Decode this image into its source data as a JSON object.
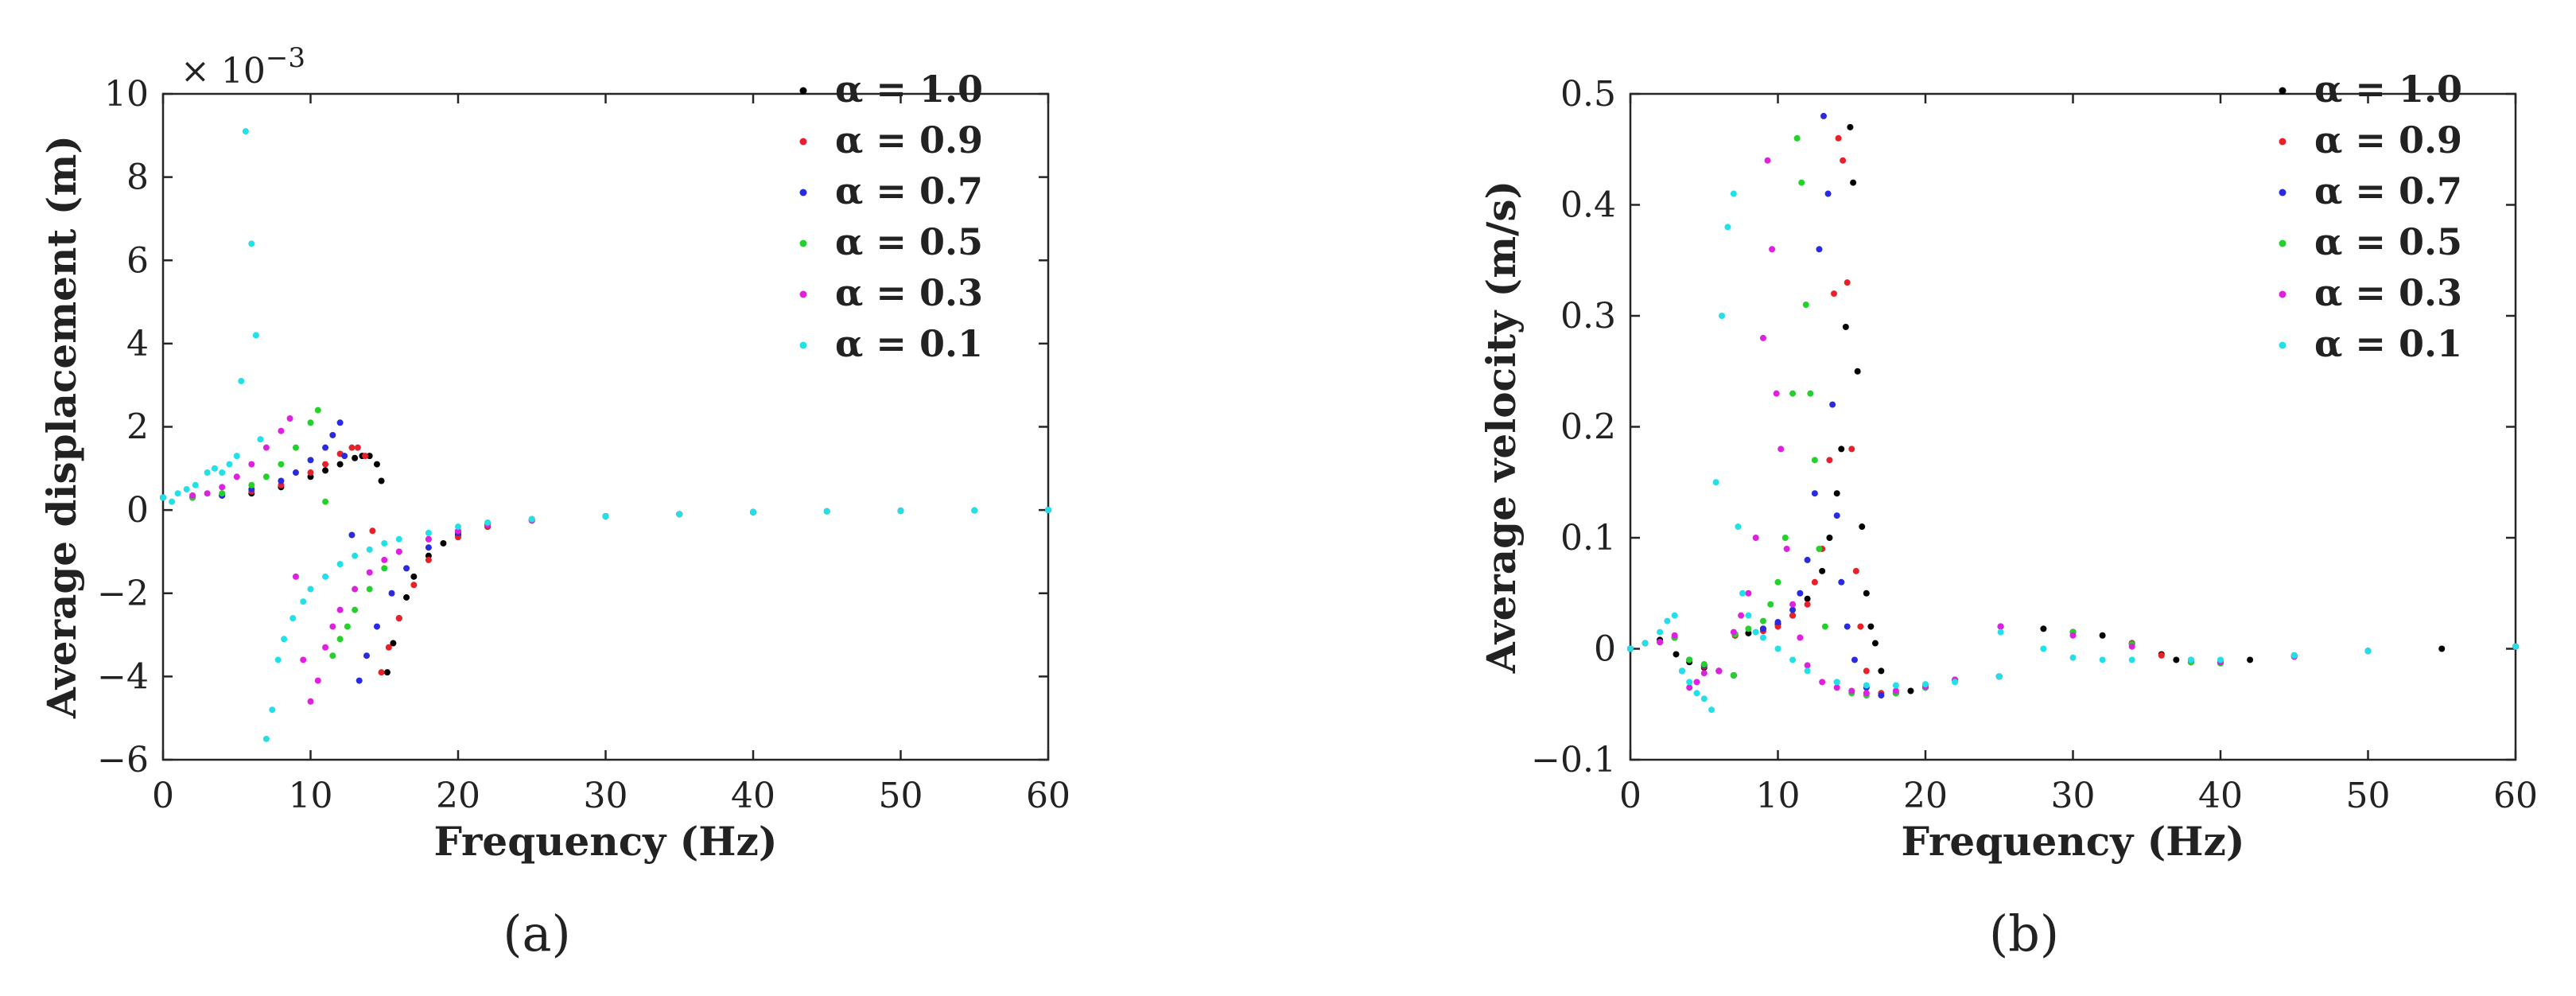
{
  "figure": {
    "panel_a_label": "(a)",
    "panel_b_label": "(b)"
  },
  "chart_data": [
    {
      "type": "scatter",
      "title": "",
      "xlabel": "Frequency (Hz)",
      "ylabel": "Average displacement (m)",
      "y_multiplier_label": "× 10",
      "y_multiplier_exponent": "−3",
      "xlim": [
        0,
        60
      ],
      "ylim": [
        -6,
        10
      ],
      "xticks": [
        "0",
        "10",
        "20",
        "30",
        "40",
        "50",
        "60"
      ],
      "yticks": [
        "−6",
        "−4",
        "−2",
        "0",
        "2",
        "4",
        "6",
        "8",
        "10"
      ],
      "grid": false,
      "legend_position": "top-right",
      "series": [
        {
          "name": "α = 1.0",
          "color": "#000000",
          "x": [
            0,
            2,
            4,
            6,
            8,
            10,
            11,
            12,
            13,
            13.5,
            14,
            14.5,
            14.8,
            15.2,
            15.6,
            16,
            16.5,
            17,
            18,
            19,
            20,
            22,
            25,
            30,
            35,
            40,
            45,
            50,
            55,
            60
          ],
          "y": [
            0.3,
            0.3,
            0.35,
            0.4,
            0.55,
            0.8,
            0.95,
            1.1,
            1.25,
            1.3,
            1.3,
            1.1,
            0.7,
            -3.9,
            -3.2,
            -2.6,
            -2.1,
            -1.6,
            -1.1,
            -0.8,
            -0.6,
            -0.4,
            -0.25,
            -0.15,
            -0.1,
            -0.05,
            -0.03,
            -0.02,
            -0.01,
            0
          ]
        },
        {
          "name": "α = 0.9",
          "color": "#e8202a",
          "x": [
            0,
            2,
            4,
            6,
            8,
            10,
            11,
            12,
            12.8,
            13.2,
            13.7,
            14.2,
            14.8,
            15.3,
            16,
            17,
            18,
            20,
            22,
            25,
            30,
            35,
            40,
            50,
            60
          ],
          "y": [
            0.3,
            0.3,
            0.35,
            0.45,
            0.6,
            0.9,
            1.1,
            1.35,
            1.5,
            1.5,
            1.3,
            -0.5,
            -3.9,
            -3.3,
            -2.6,
            -1.8,
            -1.2,
            -0.65,
            -0.4,
            -0.25,
            -0.15,
            -0.1,
            -0.05,
            -0.02,
            0
          ]
        },
        {
          "name": "α = 0.7",
          "color": "#2a2ae0",
          "x": [
            0,
            2,
            4,
            6,
            8,
            9,
            10,
            11,
            11.5,
            12,
            12.3,
            12.8,
            13.3,
            13.8,
            14.5,
            15.5,
            16.5,
            18,
            20,
            22,
            25,
            30,
            35,
            40,
            50,
            60
          ],
          "y": [
            0.3,
            0.3,
            0.35,
            0.5,
            0.7,
            0.9,
            1.2,
            1.5,
            1.8,
            2.1,
            1.3,
            -0.6,
            -4.1,
            -3.5,
            -2.8,
            -2.0,
            -1.4,
            -0.9,
            -0.55,
            -0.35,
            -0.22,
            -0.15,
            -0.1,
            -0.05,
            -0.02,
            0
          ]
        },
        {
          "name": "α = 0.5",
          "color": "#22d22a",
          "x": [
            0,
            2,
            4,
            6,
            7,
            8,
            9,
            10,
            10.5,
            11,
            11.5,
            12,
            12.5,
            13,
            14,
            15,
            16,
            18,
            20,
            22,
            25,
            30,
            35,
            40,
            50,
            60
          ],
          "y": [
            0.3,
            0.3,
            0.4,
            0.6,
            0.8,
            1.1,
            1.5,
            2.1,
            2.4,
            0.2,
            -3.5,
            -3.1,
            -2.8,
            -2.4,
            -1.9,
            -1.4,
            -1.0,
            -0.7,
            -0.5,
            -0.35,
            -0.25,
            -0.15,
            -0.1,
            -0.05,
            -0.02,
            0
          ]
        },
        {
          "name": "α = 0.3",
          "color": "#e020e0",
          "x": [
            0,
            2,
            3,
            4,
            5,
            6,
            7,
            8,
            8.6,
            9,
            9.5,
            10,
            10.5,
            11,
            11.5,
            12,
            13,
            14,
            15,
            16,
            18,
            20,
            22,
            25,
            30,
            35,
            40,
            50,
            60
          ],
          "y": [
            0.3,
            0.35,
            0.4,
            0.55,
            0.8,
            1.1,
            1.5,
            1.9,
            2.2,
            -1.6,
            -3.6,
            -4.6,
            -4.1,
            -3.3,
            -2.8,
            -2.4,
            -1.9,
            -1.5,
            -1.2,
            -1.0,
            -0.7,
            -0.5,
            -0.35,
            -0.25,
            -0.15,
            -0.1,
            -0.05,
            -0.02,
            0
          ]
        },
        {
          "name": "α = 0.1",
          "color": "#22e0e8",
          "x": [
            0,
            0.6,
            1,
            1.6,
            2.2,
            3,
            3.5,
            4,
            4.5,
            5,
            5.3,
            5.6,
            6,
            6.3,
            6.6,
            7,
            7.4,
            7.8,
            8.2,
            8.8,
            9.5,
            10,
            11,
            12,
            13,
            14,
            15,
            16,
            18,
            20,
            22,
            25,
            30,
            35,
            40,
            45,
            50,
            55,
            60
          ],
          "y": [
            0.3,
            0.2,
            0.4,
            0.5,
            0.6,
            0.9,
            1.0,
            0.9,
            1.1,
            1.3,
            3.1,
            9.1,
            6.4,
            4.2,
            1.7,
            -5.5,
            -4.8,
            -3.6,
            -3.1,
            -2.6,
            -2.2,
            -1.9,
            -1.6,
            -1.3,
            -1.1,
            -0.95,
            -0.8,
            -0.7,
            -0.55,
            -0.4,
            -0.3,
            -0.22,
            -0.15,
            -0.1,
            -0.05,
            -0.03,
            -0.02,
            -0.01,
            0
          ]
        }
      ]
    },
    {
      "type": "scatter",
      "title": "",
      "xlabel": "Frequency (Hz)",
      "ylabel": "Average velocity (m/s)",
      "xlim": [
        0,
        60
      ],
      "ylim": [
        -0.1,
        0.5
      ],
      "xticks": [
        "0",
        "10",
        "20",
        "30",
        "40",
        "50",
        "60"
      ],
      "yticks": [
        "−0.1",
        "0",
        "0.1",
        "0.2",
        "0.3",
        "0.4",
        "0.5"
      ],
      "grid": false,
      "legend_position": "top-right",
      "series": [
        {
          "name": "α = 1.0",
          "color": "#000000",
          "x": [
            0,
            1,
            2,
            3,
            3.1,
            4,
            5,
            6,
            7,
            7.1,
            8,
            9,
            10,
            11,
            12,
            13,
            13.5,
            14,
            14.3,
            14.6,
            14.9,
            15.1,
            15.4,
            15.7,
            16,
            16.3,
            16.6,
            17,
            18,
            19,
            20,
            22,
            25,
            25.1,
            28,
            30,
            32,
            34,
            36,
            37,
            38,
            40,
            42,
            45,
            50,
            55,
            60
          ],
          "y": [
            0,
            0.005,
            0.008,
            0.01,
            -0.005,
            -0.012,
            -0.017,
            -0.02,
            -0.024,
            0.012,
            0.014,
            0.018,
            0.022,
            0.03,
            0.045,
            0.07,
            0.1,
            0.14,
            0.18,
            0.29,
            0.47,
            0.42,
            0.25,
            0.11,
            0.05,
            0.02,
            0.005,
            -0.02,
            -0.04,
            -0.038,
            -0.034,
            -0.028,
            -0.025,
            0.02,
            0.018,
            0.015,
            0.012,
            0.005,
            -0.005,
            -0.01,
            -0.012,
            -0.012,
            -0.01,
            -0.006,
            -0.002,
            0,
            0.002
          ]
        },
        {
          "name": "α = 0.9",
          "color": "#e8202a",
          "x": [
            0,
            2,
            3,
            4,
            5,
            6,
            7,
            7.1,
            9,
            10,
            11,
            12,
            12.5,
            13,
            13.5,
            13.8,
            14.1,
            14.4,
            14.7,
            15,
            15.3,
            15.6,
            16,
            17,
            18,
            20,
            22,
            25,
            25.1,
            30,
            34,
            36,
            38,
            40,
            45,
            50,
            60
          ],
          "y": [
            0,
            0.006,
            0.01,
            -0.01,
            -0.016,
            -0.02,
            -0.024,
            0.012,
            0.016,
            0.02,
            0.03,
            0.04,
            0.06,
            0.09,
            0.17,
            0.32,
            0.46,
            0.44,
            0.33,
            0.18,
            0.07,
            0.02,
            -0.02,
            -0.04,
            -0.04,
            -0.035,
            -0.028,
            -0.025,
            0.02,
            0.015,
            0.005,
            -0.006,
            -0.012,
            -0.013,
            -0.007,
            -0.002,
            0.002
          ]
        },
        {
          "name": "α = 0.7",
          "color": "#2a2ae0",
          "x": [
            0,
            2,
            3,
            4,
            5,
            6,
            7,
            7.1,
            9,
            10,
            11,
            11.5,
            12,
            12.5,
            12.8,
            13.1,
            13.4,
            13.7,
            14,
            14.3,
            14.7,
            15.2,
            16,
            17,
            18,
            20,
            22,
            25,
            25.1,
            30,
            34,
            38,
            40,
            45,
            50,
            60
          ],
          "y": [
            0,
            0.006,
            0.01,
            -0.01,
            -0.015,
            -0.02,
            -0.024,
            0.013,
            0.018,
            0.024,
            0.035,
            0.05,
            0.08,
            0.14,
            0.36,
            0.48,
            0.41,
            0.22,
            0.12,
            0.06,
            0.02,
            -0.01,
            -0.035,
            -0.042,
            -0.04,
            -0.035,
            -0.028,
            -0.025,
            0.02,
            0.015,
            0.004,
            -0.012,
            -0.013,
            -0.007,
            -0.002,
            0.002
          ]
        },
        {
          "name": "α = 0.5",
          "color": "#22d22a",
          "x": [
            0,
            2,
            3,
            4,
            5,
            6,
            7,
            7.1,
            8,
            9,
            9.5,
            10,
            10.5,
            11,
            11.3,
            11.6,
            11.9,
            12.2,
            12.5,
            12.8,
            13.2,
            14,
            15,
            16,
            18,
            20,
            22,
            25,
            25.1,
            30,
            34,
            38,
            40,
            45,
            50,
            60
          ],
          "y": [
            0,
            0.006,
            0.01,
            -0.01,
            -0.014,
            -0.02,
            -0.024,
            0.013,
            0.018,
            0.025,
            0.04,
            0.06,
            0.1,
            0.23,
            0.46,
            0.42,
            0.31,
            0.23,
            0.17,
            0.09,
            0.02,
            -0.03,
            -0.04,
            -0.042,
            -0.04,
            -0.035,
            -0.028,
            -0.025,
            0.02,
            0.015,
            0.004,
            -0.012,
            -0.013,
            -0.007,
            -0.002,
            0.002
          ]
        },
        {
          "name": "α = 0.3",
          "color": "#e020e0",
          "x": [
            0,
            2,
            3,
            3.5,
            4,
            4.5,
            5,
            6,
            7,
            7.5,
            8,
            8.5,
            9,
            9.3,
            9.6,
            9.9,
            10.2,
            10.6,
            11,
            11.5,
            12,
            13,
            14,
            15,
            16,
            18,
            20,
            22,
            25,
            25.1,
            30,
            34,
            38,
            40,
            45,
            50,
            60
          ],
          "y": [
            0,
            0.006,
            0.012,
            -0.02,
            -0.035,
            -0.03,
            -0.022,
            -0.02,
            0.015,
            0.03,
            0.05,
            0.1,
            0.28,
            0.44,
            0.36,
            0.23,
            0.18,
            0.09,
            0.04,
            0.01,
            -0.015,
            -0.03,
            -0.035,
            -0.038,
            -0.04,
            -0.038,
            -0.034,
            -0.028,
            -0.025,
            0.02,
            0.012,
            0.002,
            -0.01,
            -0.012,
            -0.007,
            -0.002,
            0.002
          ]
        },
        {
          "name": "α = 0.1",
          "color": "#22e0e8",
          "x": [
            0,
            1,
            2,
            2.5,
            3,
            3.5,
            4,
            4.5,
            5,
            5.5,
            5.8,
            6.2,
            6.6,
            7,
            7.3,
            7.6,
            8,
            8.5,
            9,
            10,
            11,
            12,
            14,
            16,
            18,
            20,
            22,
            25,
            25.1,
            28,
            30,
            32,
            34,
            38,
            40,
            45,
            50,
            60
          ],
          "y": [
            0,
            0.005,
            0.015,
            0.025,
            0.03,
            -0.02,
            -0.03,
            -0.04,
            -0.045,
            -0.055,
            0.15,
            0.3,
            0.38,
            0.41,
            0.11,
            0.05,
            0.03,
            0.015,
            0.01,
            0.0,
            -0.01,
            -0.02,
            -0.03,
            -0.033,
            -0.033,
            -0.032,
            -0.03,
            -0.025,
            0.015,
            0.0,
            -0.008,
            -0.01,
            -0.01,
            -0.01,
            -0.01,
            -0.006,
            -0.002,
            0.002
          ]
        }
      ]
    }
  ]
}
